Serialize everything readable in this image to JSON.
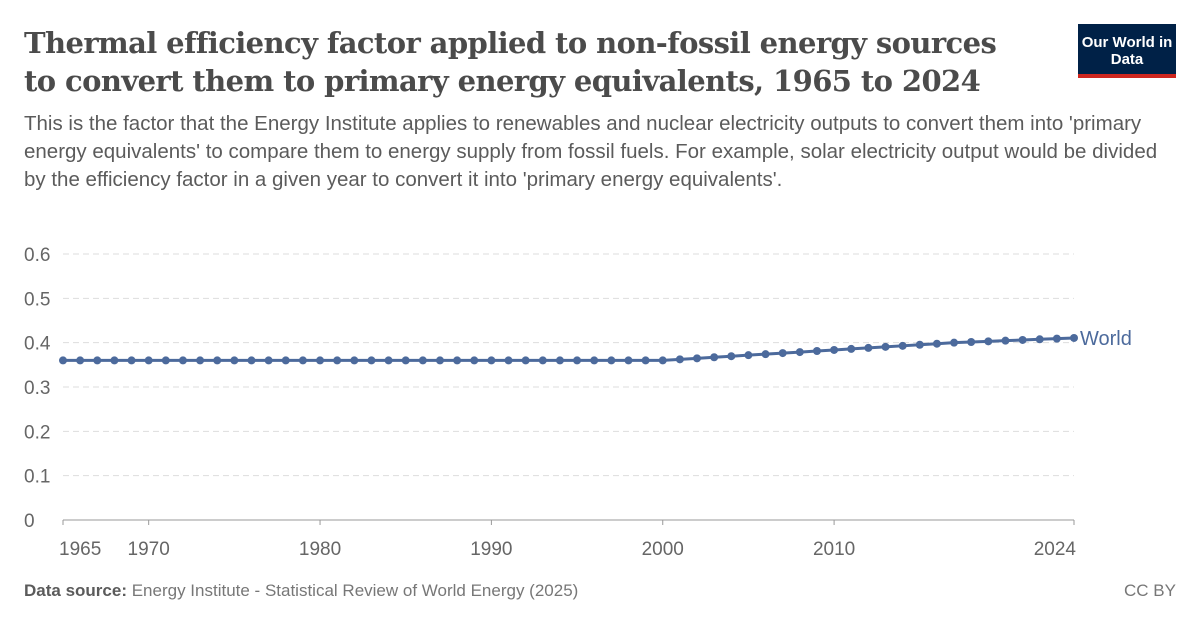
{
  "header": {
    "title": "Thermal efficiency factor applied to non-fossil energy sources to convert them to primary energy equivalents, 1965 to 2024",
    "subtitle": "This is the factor that the Energy Institute applies to renewables and nuclear electricity outputs to convert them into 'primary energy equivalents' to compare them to energy supply from fossil fuels. For example, solar electricity output would be divided by the efficiency factor in a given year to convert it into 'primary energy equivalents'.",
    "logo_text": "Our World in Data"
  },
  "footer": {
    "source_label": "Data source:",
    "source_text": "Energy Institute - Statistical Review of World Energy (2025)",
    "license": "CC BY"
  },
  "colors": {
    "series": "#4c6a9c",
    "logo_bg": "#002147",
    "logo_accent": "#ce261e"
  },
  "chart_data": {
    "type": "line",
    "title": "Thermal efficiency factor applied to non-fossil energy sources to convert them to primary energy equivalents, 1965 to 2024",
    "xlabel": "",
    "ylabel": "",
    "xlim": [
      1965,
      2024
    ],
    "ylim": [
      0,
      0.6
    ],
    "x_ticks": [
      "1965",
      "1970",
      "1980",
      "1990",
      "2000",
      "2010",
      "2024"
    ],
    "y_ticks": [
      "0",
      "0.1",
      "0.2",
      "0.3",
      "0.4",
      "0.5",
      "0.6"
    ],
    "grid": "horizontal dashed",
    "legend": "inline label at line end",
    "x": [
      1965,
      1966,
      1967,
      1968,
      1969,
      1970,
      1971,
      1972,
      1973,
      1974,
      1975,
      1976,
      1977,
      1978,
      1979,
      1980,
      1981,
      1982,
      1983,
      1984,
      1985,
      1986,
      1987,
      1988,
      1989,
      1990,
      1991,
      1992,
      1993,
      1994,
      1995,
      1996,
      1997,
      1998,
      1999,
      2000,
      2001,
      2002,
      2003,
      2004,
      2005,
      2006,
      2007,
      2008,
      2009,
      2010,
      2011,
      2012,
      2013,
      2014,
      2015,
      2016,
      2017,
      2018,
      2019,
      2020,
      2021,
      2022,
      2023,
      2024
    ],
    "series": [
      {
        "name": "World",
        "color": "#4c6a9c",
        "values": [
          0.36,
          0.36,
          0.36,
          0.36,
          0.36,
          0.36,
          0.36,
          0.36,
          0.36,
          0.36,
          0.36,
          0.36,
          0.36,
          0.36,
          0.36,
          0.36,
          0.36,
          0.36,
          0.36,
          0.36,
          0.36,
          0.36,
          0.36,
          0.36,
          0.36,
          0.36,
          0.36,
          0.36,
          0.36,
          0.36,
          0.36,
          0.36,
          0.36,
          0.36,
          0.36,
          0.36,
          0.3624,
          0.3647,
          0.3671,
          0.3694,
          0.3718,
          0.3741,
          0.3765,
          0.3788,
          0.3812,
          0.3835,
          0.3859,
          0.3882,
          0.3906,
          0.3929,
          0.3953,
          0.3976,
          0.4,
          0.4015,
          0.403,
          0.4045,
          0.4061,
          0.4076,
          0.4091,
          0.4106
        ]
      }
    ]
  }
}
